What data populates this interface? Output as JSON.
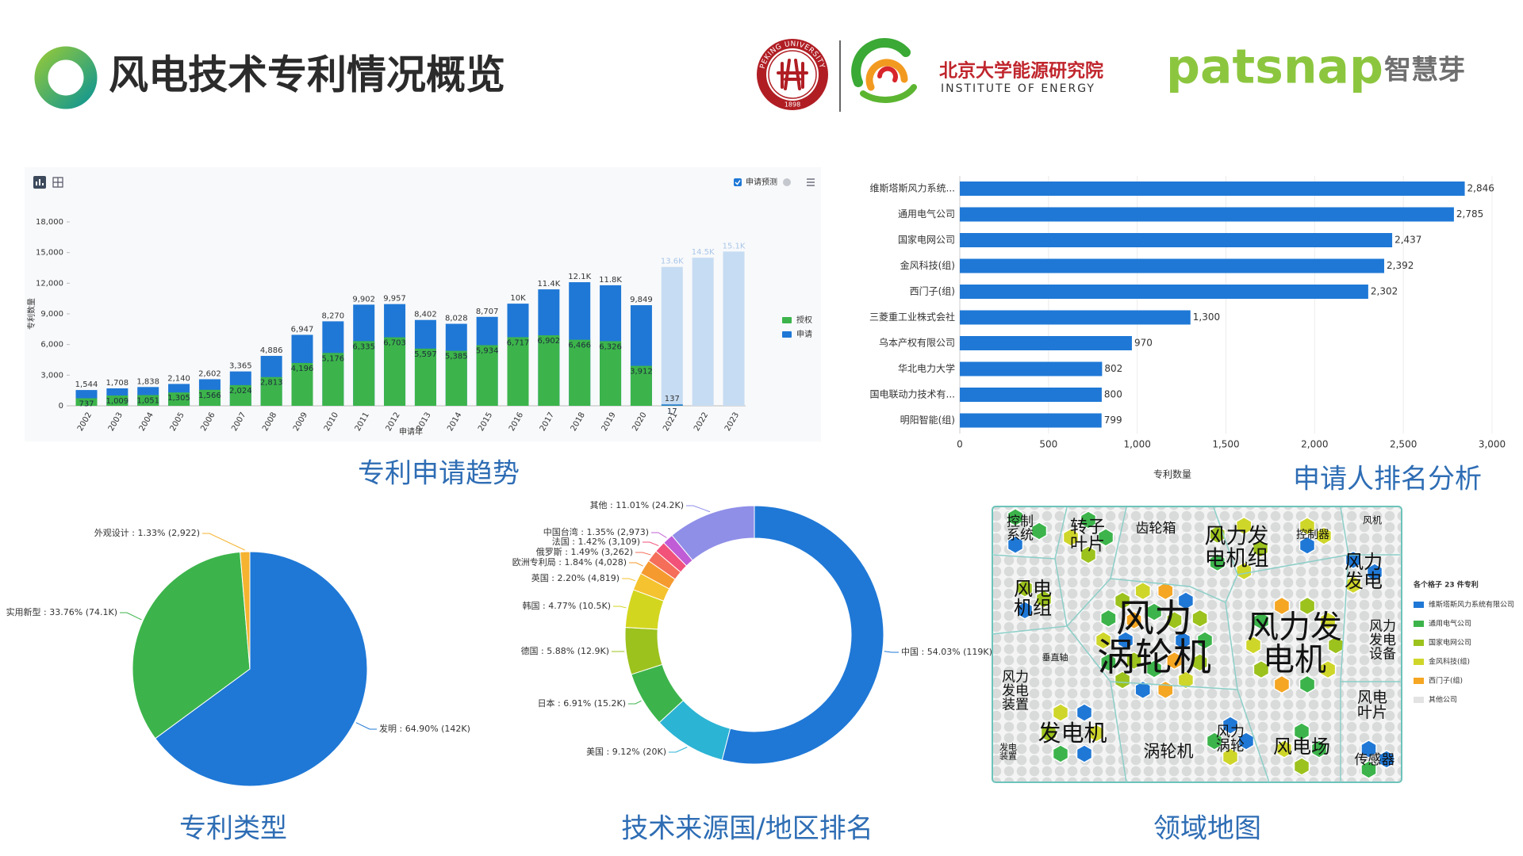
{
  "header": {
    "title": "风电技术专利情况概览",
    "university": "PEKING UNIVERSITY",
    "founded": "1898",
    "institute_cn": "北京大学能源研究院",
    "institute_en": "INSTITUTE OF ENERGY",
    "brand": "patsnap",
    "brand_cn": "智慧芽"
  },
  "chart_data": [
    {
      "type": "bar",
      "title": "专利申请趋势",
      "x_label": "申请年",
      "y_label": "专利数量",
      "categories": [
        "2002",
        "2003",
        "2004",
        "2005",
        "2006",
        "2007",
        "2008",
        "2009",
        "2010",
        "2011",
        "2012",
        "2013",
        "2014",
        "2015",
        "2016",
        "2017",
        "2018",
        "2019",
        "2020",
        "2021",
        "2022",
        "2023"
      ],
      "series": [
        {
          "name": "授权",
          "color": "#3cb44b",
          "values": [
            737,
            1009,
            1051,
            1305,
            1566,
            2024,
            2813,
            4196,
            5176,
            6335,
            6703,
            5597,
            5385,
            5934,
            6717,
            6902,
            6466,
            6326,
            3912,
            17,
            null,
            null
          ],
          "value_labels": [
            "737",
            "1,009",
            "1,051",
            "1,305",
            "1,566",
            "2,024",
            "2,813",
            "4,196",
            "5,176",
            "6,335",
            "6,703",
            "5,597",
            "5,385",
            "5,934",
            "6,717",
            "6,902",
            "6,466",
            "6,326",
            "3,912",
            "17",
            null,
            null
          ]
        },
        {
          "name": "申请",
          "color": "#1f78d6",
          "values": [
            1544,
            1708,
            1838,
            2140,
            2602,
            3365,
            4886,
            6947,
            8270,
            9902,
            9957,
            8402,
            8028,
            8707,
            10000,
            11400,
            12100,
            11800,
            9849,
            137,
            null,
            null
          ],
          "value_labels": [
            "1,544",
            "1,708",
            "1,838",
            "2,140",
            "2,602",
            "3,365",
            "4,886",
            "6,947",
            "8,270",
            "9,902",
            "9,957",
            "8,402",
            "8,028",
            "8,707",
            "10K",
            "11.4K",
            "12.1K",
            "11.8K",
            "9,849",
            "137",
            null,
            null
          ]
        },
        {
          "name": "申请预测",
          "color": "#c6dcf2",
          "values": [
            null,
            null,
            null,
            null,
            null,
            null,
            null,
            null,
            null,
            null,
            null,
            null,
            null,
            null,
            null,
            null,
            null,
            null,
            null,
            13600,
            14500,
            15100
          ],
          "value_labels": [
            null,
            null,
            null,
            null,
            null,
            null,
            null,
            null,
            null,
            null,
            null,
            null,
            null,
            null,
            null,
            null,
            null,
            null,
            null,
            "13.6K",
            "14.5K",
            "15.1K"
          ]
        }
      ],
      "ylim": [
        0,
        18000
      ],
      "yticks": [
        0,
        {
          "value": 3000,
          "label": "3,000"
        },
        {
          "value": 6000,
          "label": "6,000"
        },
        {
          "value": 9000,
          "label": "9,000"
        },
        {
          "value": 12000,
          "label": "12,000"
        },
        {
          "value": 15000,
          "label": "15,000"
        },
        {
          "value": 18000,
          "label": "18,000"
        }
      ]
    },
    {
      "type": "hbar",
      "title": "申请人排名分析",
      "x_label": "专利数量",
      "categories": [
        "维斯塔斯风力系统...",
        "通用电气公司",
        "国家电网公司",
        "金风科技(组)",
        "西门子(组)",
        "三菱重工业株式会社",
        "乌本产权有限公司",
        "华北电力大学",
        "国电联动力技术有...",
        "明阳智能(组)"
      ],
      "values": [
        2846,
        2785,
        2437,
        2392,
        2302,
        1300,
        970,
        802,
        800,
        799
      ],
      "value_labels": [
        "2,846",
        "2,785",
        "2,437",
        "2,392",
        "2,302",
        "1,300",
        "970",
        "802",
        "800",
        "799"
      ],
      "color": "#1f78d6",
      "grid": true,
      "xlim": [
        0,
        3000
      ],
      "xticks": [
        0,
        500,
        {
          "value": 1000,
          "label": "1,000"
        },
        {
          "value": 1500,
          "label": "1,500"
        },
        {
          "value": 2000,
          "label": "2,000"
        },
        {
          "value": 2500,
          "label": "2,500"
        },
        {
          "value": 3000,
          "label": "3,000"
        }
      ]
    },
    {
      "type": "pie",
      "title": "专利类型",
      "values": [
        64.9,
        33.76,
        1.33
      ],
      "value_labels": [
        "发明 : 64.90% (142K)",
        "实用新型 : 33.76% (74.1K)",
        "外观设计 : 1.33% (2,922)"
      ],
      "colors": [
        "#1f78d6",
        "#3cb44b",
        "#f5b32f"
      ]
    },
    {
      "type": "donut",
      "title": "技术来源国/地区排名",
      "values": [
        54.03,
        9.12,
        6.91,
        5.88,
        4.77,
        2.2,
        1.84,
        1.49,
        1.42,
        1.35,
        11.01
      ],
      "value_labels": [
        "中国 : 54.03% (119K)",
        "美国 : 9.12% (20K)",
        "日本 : 6.91% (15.2K)",
        "德国 : 5.88% (12.9K)",
        "韩国 : 4.77% (10.5K)",
        "英国 : 2.20% (4,819)",
        "欧洲专利局 : 1.84% (4,028)",
        "俄罗斯 : 1.49% (3,262)",
        "法国 : 1.42% (3,109)",
        "中国台湾 : 1.35% (2,973)",
        "其他 : 11.01% (24.2K)"
      ],
      "colors": [
        "#1f78d6",
        "#2cb4d4",
        "#3cb44b",
        "#9cc21d",
        "#d3d61e",
        "#f5c32f",
        "#f59a2f",
        "#f46e5a",
        "#f2527a",
        "#c05cd6",
        "#8f8fe8"
      ]
    }
  ],
  "field_map": {
    "title": "领域地图",
    "legend_title": "各个格子 23 件专利",
    "legend": [
      {
        "name": "维斯塔斯风力系统有限公司",
        "color": "#1f78d6"
      },
      {
        "name": "通用电气公司",
        "color": "#3cb44b"
      },
      {
        "name": "国家电网公司",
        "color": "#9cc21d"
      },
      {
        "name": "金风科技(组)",
        "color": "#cfd62a"
      },
      {
        "name": "西门子(组)",
        "color": "#f5a623"
      },
      {
        "name": "其他公司",
        "color": "#e3e3e3"
      }
    ],
    "labels": [
      [
        "控制",
        "系统"
      ],
      [
        "转子",
        "叶片"
      ],
      [
        "齿轮箱"
      ],
      [
        "风力发",
        "电机组"
      ],
      [
        "控制器"
      ],
      [
        "风机"
      ],
      [
        "风力",
        "发电"
      ],
      [
        "风电",
        "机组"
      ],
      [
        "风力",
        "涡轮机"
      ],
      [
        "风力发",
        "电机"
      ],
      [
        "风力",
        "发电",
        "设备"
      ],
      [
        "垂直轴"
      ],
      [
        "风力",
        "发电",
        "装置"
      ],
      [
        "风电",
        "叶片"
      ],
      [
        "发电机"
      ],
      [
        "涡轮机"
      ],
      [
        "风力",
        "涡轮"
      ],
      [
        "风电场"
      ],
      [
        "传感器"
      ],
      [
        "发电",
        "装置"
      ]
    ]
  }
}
